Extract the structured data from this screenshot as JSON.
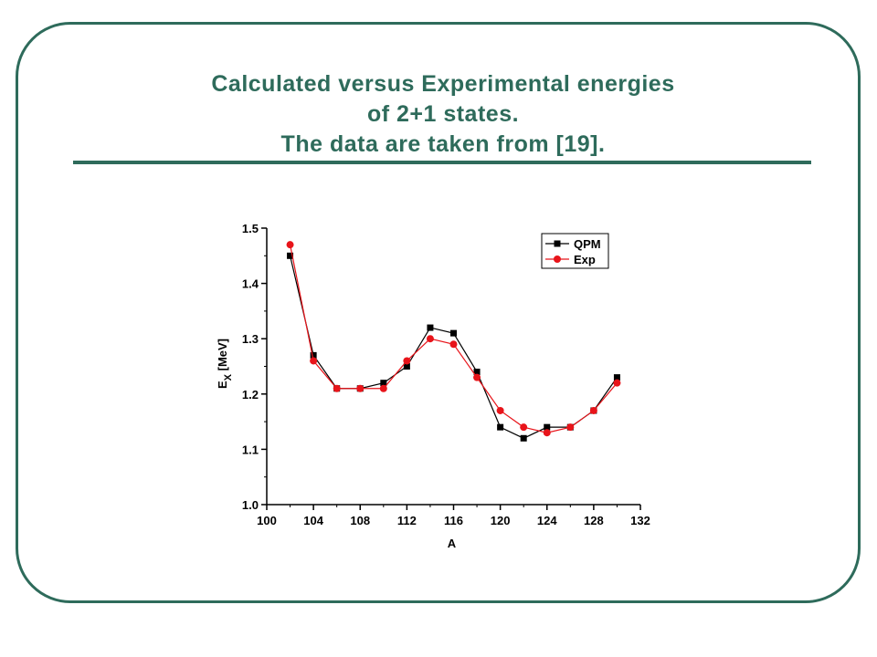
{
  "title": {
    "line1": "Calculated versus Experimental energies",
    "line2": "of 2+1 states.",
    "line3": "The data are taken from [19]."
  },
  "colors": {
    "accent": "#2e6b5b",
    "qpm": "#000000",
    "exp": "#e8141a"
  },
  "chart_data": {
    "type": "line",
    "xlabel": "A",
    "ylabel": "E",
    "ylabel_sub": "X",
    "ylabel_tail": " [MeV]",
    "xlim": [
      100,
      132
    ],
    "ylim": [
      1.0,
      1.5
    ],
    "xticks": [
      "100",
      "104",
      "108",
      "112",
      "116",
      "120",
      "124",
      "128",
      "132"
    ],
    "yticks": [
      "1.0",
      "1.1",
      "1.2",
      "1.3",
      "1.4",
      "1.5"
    ],
    "legend_position": "top-right",
    "series": [
      {
        "name": "QPM",
        "marker": "square",
        "color": "#000000",
        "x": [
          102,
          104,
          106,
          108,
          110,
          112,
          114,
          116,
          118,
          120,
          122,
          124,
          126,
          128,
          130
        ],
        "y": [
          1.45,
          1.27,
          1.21,
          1.21,
          1.22,
          1.25,
          1.32,
          1.31,
          1.24,
          1.14,
          1.12,
          1.14,
          1.14,
          1.17,
          1.23
        ]
      },
      {
        "name": "Exp",
        "marker": "circle",
        "color": "#e8141a",
        "x": [
          102,
          104,
          106,
          108,
          110,
          112,
          114,
          116,
          118,
          120,
          122,
          124,
          126,
          128,
          130
        ],
        "y": [
          1.47,
          1.26,
          1.21,
          1.21,
          1.21,
          1.26,
          1.3,
          1.29,
          1.23,
          1.17,
          1.14,
          1.13,
          1.14,
          1.17,
          1.22
        ]
      }
    ]
  }
}
